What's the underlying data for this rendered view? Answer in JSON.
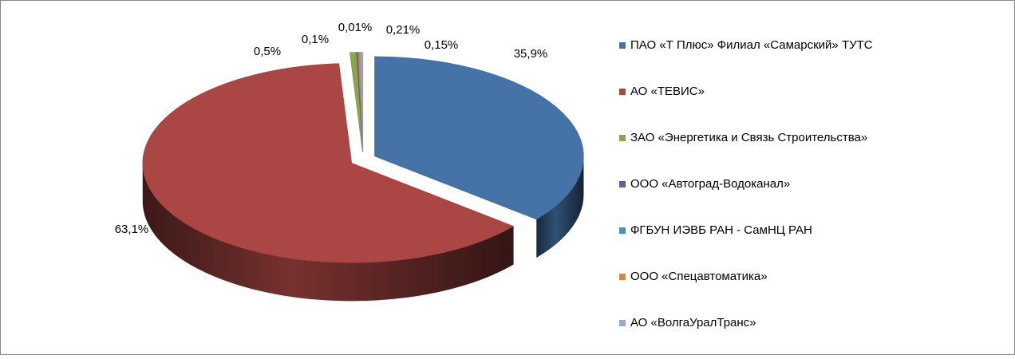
{
  "chart_data": {
    "type": "pie",
    "categories": [
      "ПАО «Т Плюс» Филиал «Самарский» ТУТС",
      "АО «ТЕВИС»",
      "ЗАО «Энергетика и Связь Строительства»",
      "ООО «Автоград-Водоканал»",
      "ФГБУН ИЭВБ РАН - СамНЦ РАН",
      "ООО «Спецавтоматика»",
      "АО «ВолгаУралТранс»"
    ],
    "values": [
      35.9,
      63.1,
      0.5,
      0.1,
      0.01,
      0.15,
      0.21
    ],
    "value_labels": [
      "35,9%",
      "63,1%",
      "0,5%",
      "0,1%",
      "0,01%",
      "0,15%",
      "0,21%"
    ],
    "colors": [
      "#4572a7",
      "#aa4643",
      "#89a54e",
      "#71588f",
      "#4198af",
      "#db843d",
      "#93a9cf"
    ],
    "legend": "right"
  }
}
